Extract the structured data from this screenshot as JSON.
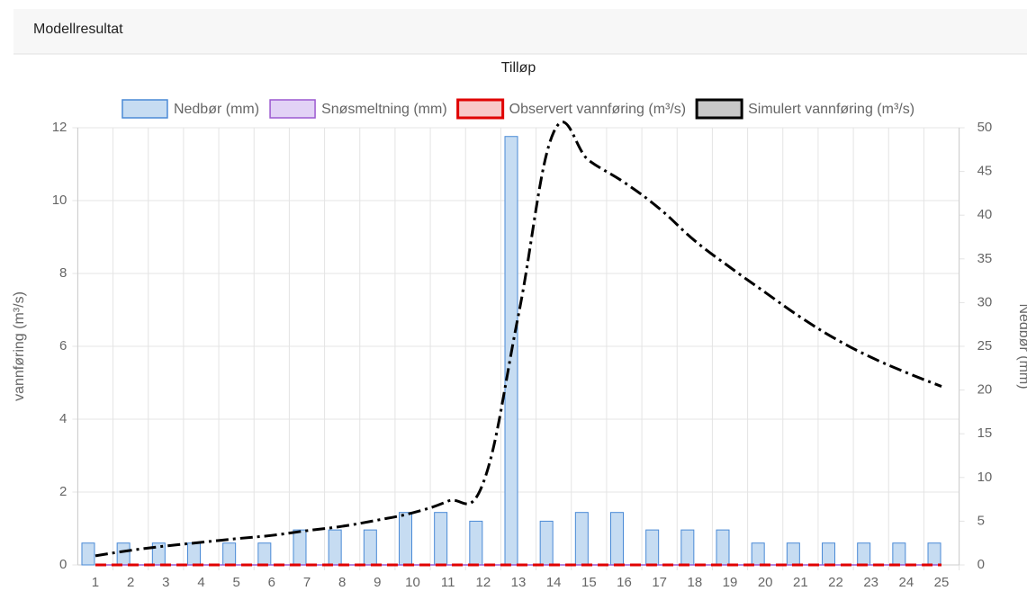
{
  "header": {
    "title": "Modellresultat"
  },
  "chart_data": {
    "type": "combo",
    "title": "Tilløp",
    "categories": [
      "1",
      "2",
      "3",
      "4",
      "5",
      "6",
      "7",
      "8",
      "9",
      "10",
      "11",
      "12",
      "13",
      "14",
      "15",
      "16",
      "17",
      "18",
      "19",
      "20",
      "21",
      "22",
      "23",
      "24",
      "25"
    ],
    "ylabel": "vannføring (m³/s)",
    "y2label": "Nedbør (mm)",
    "ylim": [
      0,
      12
    ],
    "yticks": [
      0,
      2,
      4,
      6,
      8,
      10,
      12
    ],
    "y2lim": [
      0,
      50
    ],
    "y2ticks": [
      0,
      5,
      10,
      15,
      20,
      25,
      30,
      35,
      40,
      45,
      50
    ],
    "grid": true,
    "legend": "top",
    "series": [
      {
        "name": "Nedbør (mm)",
        "type": "bar",
        "axis": "y2",
        "color": "#4a8ad6",
        "fill": "#c6dcf2",
        "values": [
          2.5,
          2.5,
          2.5,
          2.5,
          2.5,
          2.5,
          4,
          4,
          4,
          6,
          6,
          5,
          49,
          5,
          6,
          6,
          4,
          4,
          4,
          2.5,
          2.5,
          2.5,
          2.5,
          2.5,
          2.5
        ]
      },
      {
        "name": "Snøsmeltning (mm)",
        "type": "line",
        "axis": "y2",
        "color": "#9b59d0",
        "fill": "#e2d2f6",
        "values": [
          0,
          0,
          0,
          0,
          0,
          0,
          0,
          0,
          0,
          0,
          0,
          0,
          0,
          0,
          0,
          0,
          0,
          0,
          0,
          0,
          0,
          0,
          0,
          0,
          0
        ]
      },
      {
        "name": "Observert vannføring (m³/s)",
        "type": "line",
        "axis": "y",
        "color": "#e00000",
        "fill": "#f8c8c8",
        "dash": "dashed",
        "values": [
          0,
          0,
          0,
          0,
          0,
          0,
          0,
          0,
          0,
          0,
          0,
          0,
          0,
          0,
          0,
          0,
          0,
          0,
          0,
          0,
          0,
          0,
          0,
          0,
          0
        ]
      },
      {
        "name": "Simulert vannføring (m³/s)",
        "type": "line",
        "axis": "y",
        "color": "#000000",
        "fill": "#c8c8c8",
        "dash": "dashdot",
        "values": [
          0.25,
          0.4,
          0.52,
          0.62,
          0.72,
          0.81,
          0.94,
          1.06,
          1.23,
          1.43,
          1.75,
          2.25,
          6.86,
          11.88,
          11.1,
          10.5,
          9.78,
          8.9,
          8.17,
          7.48,
          6.8,
          6.2,
          5.7,
          5.28,
          4.9
        ]
      }
    ]
  }
}
